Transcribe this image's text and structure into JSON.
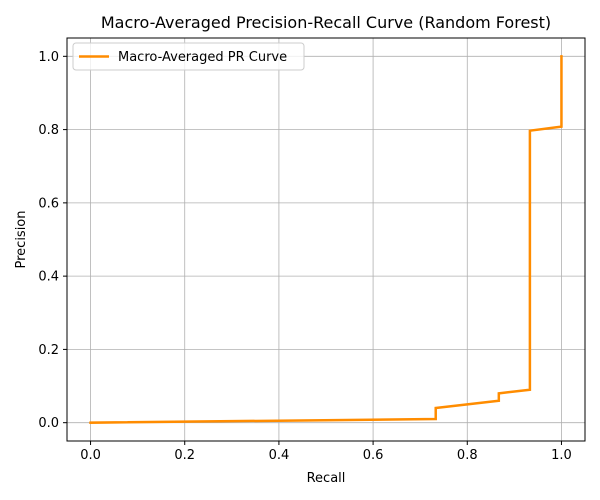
{
  "chart_data": {
    "type": "line",
    "title": "Macro-Averaged Precision-Recall Curve (Random Forest)",
    "xlabel": "Recall",
    "ylabel": "Precision",
    "xlim": [
      -0.05,
      1.05
    ],
    "ylim": [
      -0.05,
      1.05
    ],
    "xticks": [
      0.0,
      0.2,
      0.4,
      0.6,
      0.8,
      1.0
    ],
    "yticks": [
      0.0,
      0.2,
      0.4,
      0.6,
      0.8,
      1.0
    ],
    "xtick_labels": [
      "0.0",
      "0.2",
      "0.4",
      "0.6",
      "0.8",
      "1.0"
    ],
    "ytick_labels": [
      "0.0",
      "0.2",
      "0.4",
      "0.6",
      "0.8",
      "1.0"
    ],
    "grid": true,
    "legend_position": "top-left",
    "series": [
      {
        "name": "Macro-Averaged PR Curve",
        "color": "#ff8c00",
        "x": [
          0.0,
          0.733,
          0.733,
          0.867,
          0.867,
          0.933,
          0.933,
          1.0,
          1.0
        ],
        "y": [
          0.0,
          0.01,
          0.04,
          0.06,
          0.08,
          0.09,
          0.797,
          0.808,
          1.0
        ]
      }
    ]
  }
}
